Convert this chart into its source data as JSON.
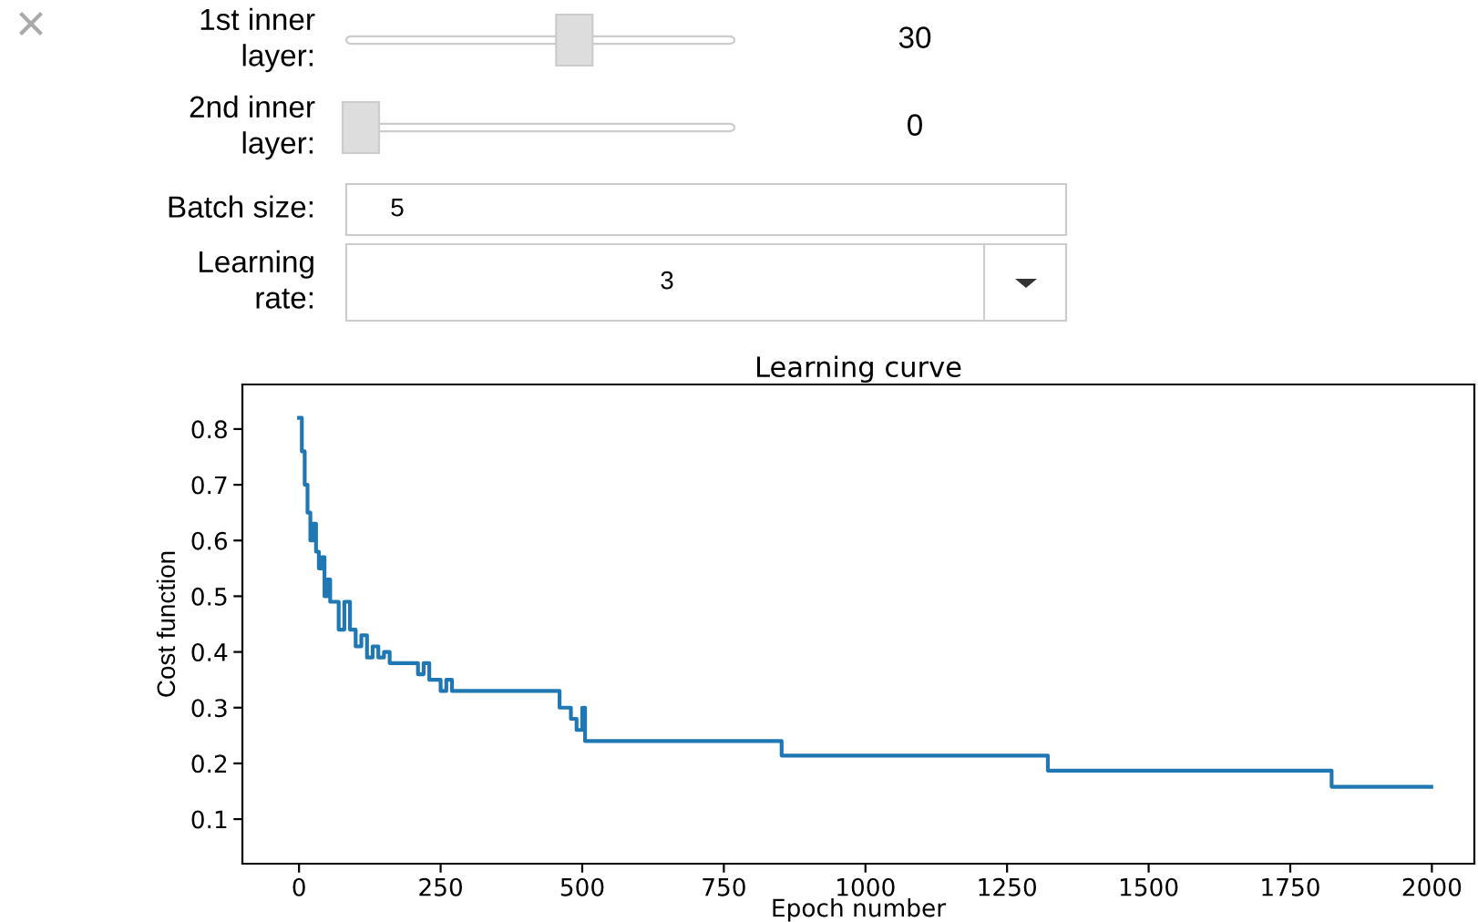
{
  "chart_data": {
    "type": "step",
    "title": "Learning curve",
    "xlabel": "Epoch number",
    "ylabel": "Cost function",
    "annotations": [
      "1st inner\nlayer:",
      "30",
      "2nd inner\nlayer:",
      "0",
      "Batch size:",
      "5",
      "Learning\nrate:",
      "3"
    ],
    "x": [
      0,
      5,
      10,
      15,
      20,
      25,
      30,
      35,
      40,
      45,
      50,
      55,
      70,
      80,
      90,
      100,
      110,
      120,
      130,
      140,
      150,
      160,
      200,
      210,
      220,
      230,
      250,
      260,
      270,
      450,
      460,
      480,
      490,
      500,
      505,
      852,
      1322,
      1823,
      1999
    ],
    "series": [
      {
        "color": "#1f77b4",
        "values": [
          0.82,
          0.76,
          0.7,
          0.65,
          0.6,
          0.63,
          0.58,
          0.55,
          0.57,
          0.5,
          0.53,
          0.49,
          0.44,
          0.49,
          0.44,
          0.41,
          0.43,
          0.39,
          0.41,
          0.39,
          0.4,
          0.38,
          0.38,
          0.36,
          0.38,
          0.35,
          0.33,
          0.35,
          0.33,
          0.33,
          0.3,
          0.28,
          0.26,
          0.3,
          0.24,
          0.214,
          0.187,
          0.158,
          0.158
        ]
      }
    ],
    "xlim": [
      -100,
      2075
    ],
    "ylim": [
      0.02,
      0.88
    ],
    "xticks": [
      0,
      250,
      500,
      750,
      1000,
      1250,
      1500,
      1750,
      2000
    ],
    "yticks": [
      0.1,
      0.2,
      0.3,
      0.4,
      0.5,
      0.6,
      0.7,
      0.8
    ],
    "grid": false,
    "legend": false
  }
}
